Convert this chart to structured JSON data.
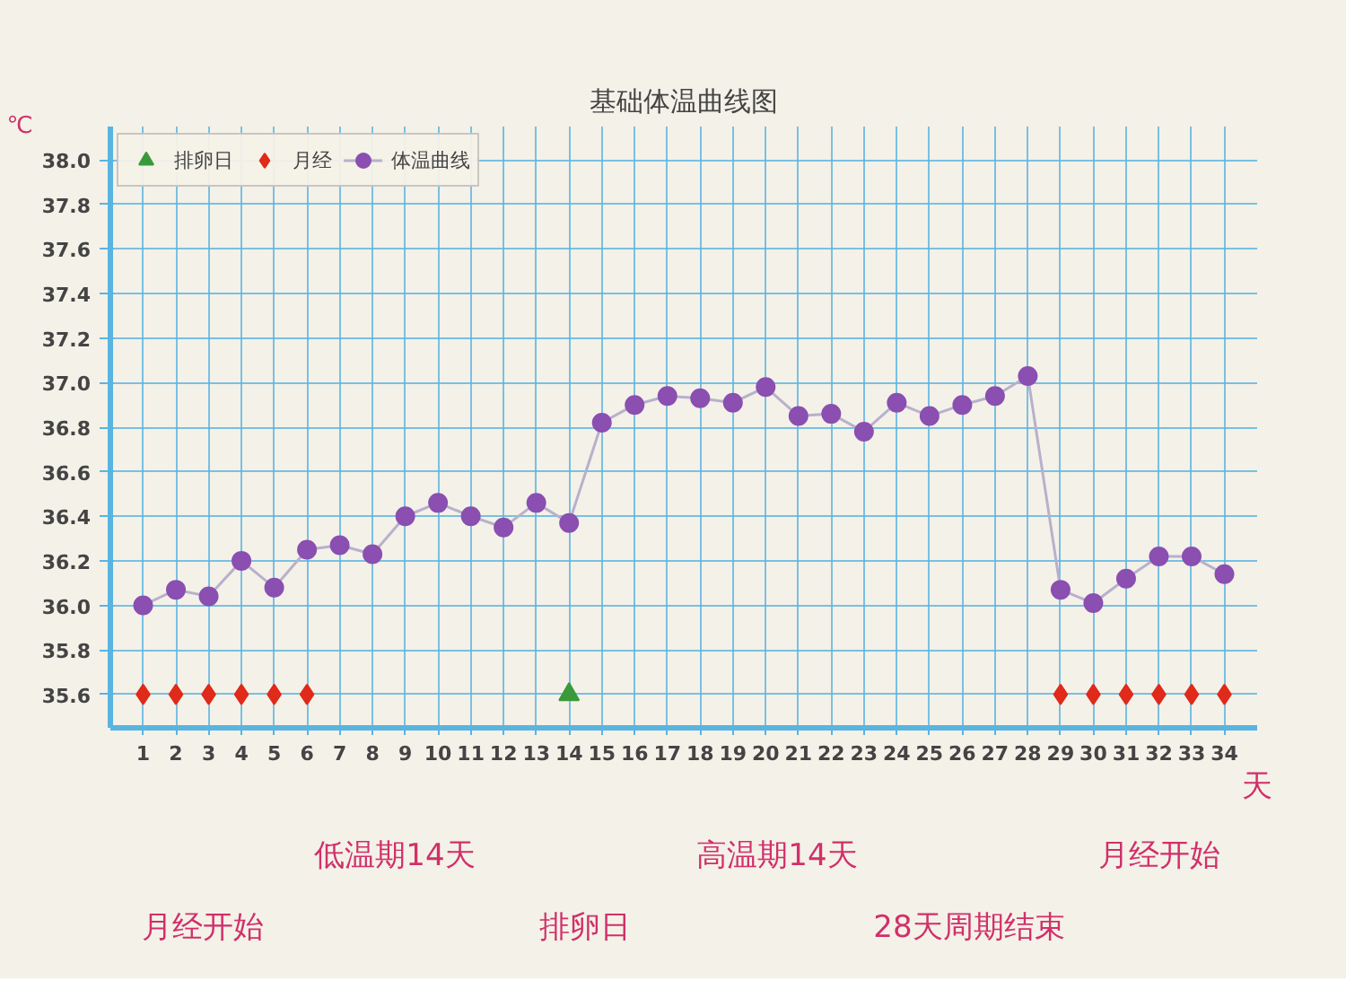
{
  "chart_data": {
    "type": "line",
    "title": "基础体温曲线图",
    "ylabel": "℃",
    "xlabel": "天",
    "xlim": [
      0,
      35
    ],
    "xticks": [
      1,
      2,
      3,
      4,
      5,
      6,
      7,
      8,
      9,
      10,
      11,
      12,
      13,
      14,
      15,
      16,
      17,
      18,
      19,
      20,
      21,
      22,
      23,
      24,
      25,
      26,
      27,
      28,
      29,
      30,
      31,
      32,
      33,
      34
    ],
    "ylim": [
      35.45,
      38.15
    ],
    "yticks": [
      35.6,
      35.8,
      {
        "value": 36,
        "label": "36.0"
      },
      36.2,
      36.4,
      36.6,
      36.8,
      {
        "value": 37,
        "label": "37.0"
      },
      37.2,
      37.4,
      37.6,
      37.8,
      {
        "value": 38,
        "label": "38.0"
      }
    ],
    "grid": true,
    "legend": "top left",
    "series": [
      {
        "name": "排卵日",
        "type": "scatter",
        "marker": "triangle",
        "color": "#3a9a3a",
        "x": [
          14
        ],
        "values": [
          35.6
        ]
      },
      {
        "name": "月经",
        "type": "scatter",
        "marker": "diamond",
        "color": "#e02a1a",
        "x": [
          1,
          2,
          3,
          4,
          5,
          6,
          29,
          30,
          31,
          32,
          33,
          34
        ],
        "values": [
          35.6,
          35.6,
          35.6,
          35.6,
          35.6,
          35.6,
          35.6,
          35.6,
          35.6,
          35.6,
          35.6,
          35.6
        ]
      },
      {
        "name": "体温曲线",
        "marker": "circle",
        "color": "#8a4fb0",
        "x": [
          1,
          2,
          3,
          4,
          5,
          6,
          7,
          8,
          9,
          10,
          11,
          12,
          13,
          14,
          15,
          16,
          17,
          18,
          19,
          20,
          21,
          22,
          23,
          24,
          25,
          26,
          27,
          28,
          29,
          30,
          31,
          32,
          33,
          34
        ],
        "values": [
          36.0,
          36.07,
          36.04,
          36.2,
          36.08,
          36.25,
          36.27,
          36.23,
          36.4,
          36.46,
          36.4,
          36.35,
          36.46,
          36.37,
          36.82,
          36.9,
          36.94,
          36.93,
          36.91,
          36.98,
          36.85,
          36.86,
          36.78,
          36.91,
          36.85,
          36.9,
          36.94,
          37.03,
          36.07,
          36.01,
          36.12,
          36.22,
          36.22,
          36.14
        ]
      }
    ],
    "annotations": [
      "月经开始",
      "低温期14天",
      "排卵日",
      "高温期14天",
      "28天周期结束",
      "月经开始"
    ]
  }
}
